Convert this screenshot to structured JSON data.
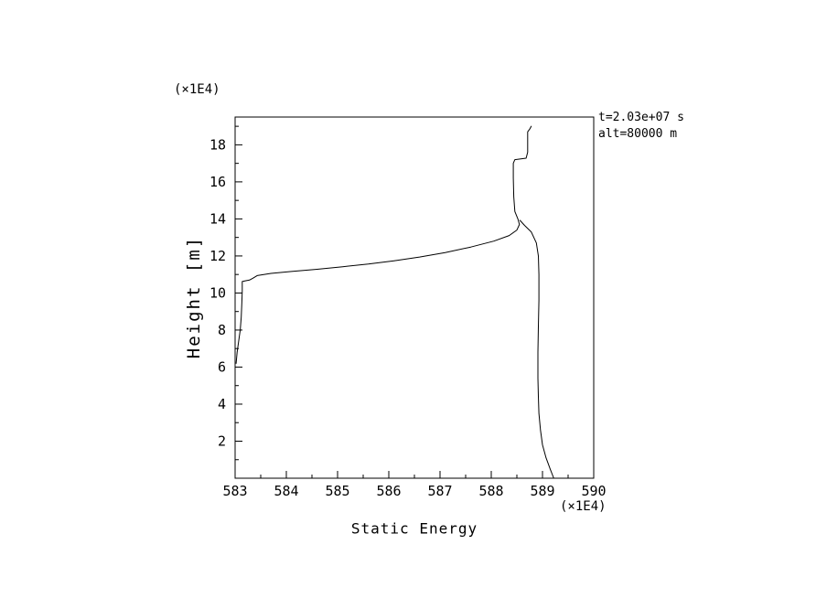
{
  "page": {
    "background": "#ffffff",
    "line_color": "#000000"
  },
  "chart_data": {
    "type": "line",
    "title": "",
    "xlabel": "Static Energy",
    "ylabel": "Height [m]",
    "x_unit": "(×1E4)",
    "y_unit": "(×1E4)",
    "xlim": [
      583,
      590
    ],
    "ylim": [
      0,
      19.5
    ],
    "x_major_ticks": [
      583,
      584,
      585,
      586,
      587,
      588,
      589,
      590
    ],
    "x_minor_step": 0.5,
    "y_major_ticks": [
      2,
      4,
      6,
      8,
      10,
      12,
      14,
      16,
      18
    ],
    "y_minor_step": 1,
    "grid": false,
    "legend": "none",
    "line_color": "#000000",
    "annotations": [
      {
        "text": "t=2.03e+07 s"
      },
      {
        "text": "alt=80000 m"
      }
    ],
    "series": [
      {
        "name": "static-energy-profile-upper",
        "points": [
          [
            583.02,
            6.2
          ],
          [
            583.04,
            6.8
          ],
          [
            583.07,
            7.4
          ],
          [
            583.1,
            8.0
          ],
          [
            583.12,
            8.7
          ],
          [
            583.13,
            9.4
          ],
          [
            583.14,
            10.1
          ],
          [
            583.14,
            10.62
          ],
          [
            583.2,
            10.66
          ],
          [
            583.28,
            10.7
          ],
          [
            583.35,
            10.8
          ],
          [
            583.43,
            10.94
          ],
          [
            583.7,
            11.06
          ],
          [
            584.1,
            11.16
          ],
          [
            584.6,
            11.28
          ],
          [
            585.1,
            11.42
          ],
          [
            585.6,
            11.56
          ],
          [
            586.1,
            11.74
          ],
          [
            586.6,
            11.94
          ],
          [
            587.1,
            12.18
          ],
          [
            587.6,
            12.48
          ],
          [
            588.05,
            12.8
          ],
          [
            588.35,
            13.1
          ],
          [
            588.5,
            13.4
          ],
          [
            588.55,
            13.7
          ],
          [
            588.52,
            14.0
          ],
          [
            588.46,
            14.4
          ],
          [
            588.44,
            15.2
          ],
          [
            588.43,
            16.2
          ],
          [
            588.43,
            17.0
          ],
          [
            588.46,
            17.2
          ],
          [
            588.68,
            17.28
          ],
          [
            588.71,
            17.6
          ],
          [
            588.71,
            18.2
          ],
          [
            588.71,
            18.7
          ],
          [
            588.75,
            18.85
          ],
          [
            588.78,
            19.0
          ]
        ]
      },
      {
        "name": "static-energy-profile-lower",
        "points": [
          [
            589.22,
            0.0
          ],
          [
            589.15,
            0.5
          ],
          [
            589.07,
            1.1
          ],
          [
            589.0,
            1.8
          ],
          [
            588.96,
            2.6
          ],
          [
            588.93,
            3.5
          ],
          [
            588.92,
            4.4
          ],
          [
            588.91,
            5.4
          ],
          [
            588.91,
            6.8
          ],
          [
            588.92,
            8.2
          ],
          [
            588.93,
            9.6
          ],
          [
            588.93,
            11.0
          ],
          [
            588.92,
            12.0
          ],
          [
            588.88,
            12.7
          ],
          [
            588.78,
            13.3
          ],
          [
            588.65,
            13.65
          ],
          [
            588.56,
            13.92
          ]
        ]
      }
    ]
  }
}
